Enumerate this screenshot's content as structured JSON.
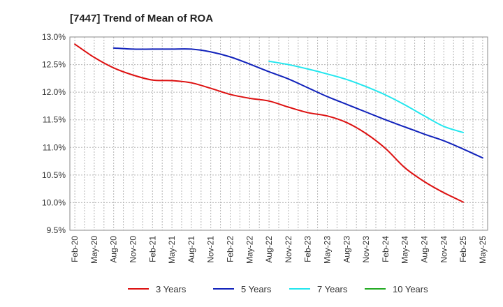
{
  "chart_data": {
    "type": "line",
    "title": "[7447]  Trend of Mean of ROA",
    "xlabel": "",
    "ylabel": "",
    "ylim": [
      9.5,
      13.0
    ],
    "yticks": [
      "13.0%",
      "12.5%",
      "12.0%",
      "11.5%",
      "11.0%",
      "10.5%",
      "10.0%",
      "9.5%"
    ],
    "ytick_values": [
      13.0,
      12.5,
      12.0,
      11.5,
      11.0,
      10.5,
      10.0,
      9.5
    ],
    "x_labels": [
      "Feb-20",
      "May-20",
      "Aug-20",
      "Nov-20",
      "Feb-21",
      "May-21",
      "Aug-21",
      "Nov-21",
      "Feb-22",
      "May-22",
      "Aug-22",
      "Nov-22",
      "Feb-23",
      "May-23",
      "Aug-23",
      "Nov-23",
      "Feb-24",
      "May-24",
      "Aug-24",
      "Nov-24",
      "Feb-25",
      "May-25"
    ],
    "grid": true,
    "legend_position": "bottom",
    "series": [
      {
        "name": "3 Years",
        "color": "#dd1111",
        "start_label": "Feb-20",
        "values": [
          12.87,
          12.63,
          12.44,
          12.31,
          12.22,
          12.21,
          12.17,
          12.07,
          11.96,
          11.89,
          11.84,
          11.73,
          11.63,
          11.57,
          11.45,
          11.25,
          10.98,
          10.63,
          10.38,
          10.18,
          10.01
        ]
      },
      {
        "name": "5 Years",
        "color": "#1122bb",
        "start_label": "Aug-20",
        "values": [
          12.8,
          12.78,
          12.78,
          12.78,
          12.78,
          12.73,
          12.64,
          12.51,
          12.37,
          12.24,
          12.08,
          11.92,
          11.78,
          11.64,
          11.5,
          11.37,
          11.24,
          11.12,
          10.97,
          10.81
        ]
      },
      {
        "name": "7 Years",
        "color": "#22e6ee",
        "start_label": "Aug-22",
        "values": [
          12.56,
          12.5,
          12.42,
          12.33,
          12.23,
          12.1,
          11.95,
          11.77,
          11.57,
          11.38,
          11.27
        ]
      },
      {
        "name": "10 Years",
        "color": "#22aa22",
        "start_label": "",
        "values": []
      }
    ]
  }
}
